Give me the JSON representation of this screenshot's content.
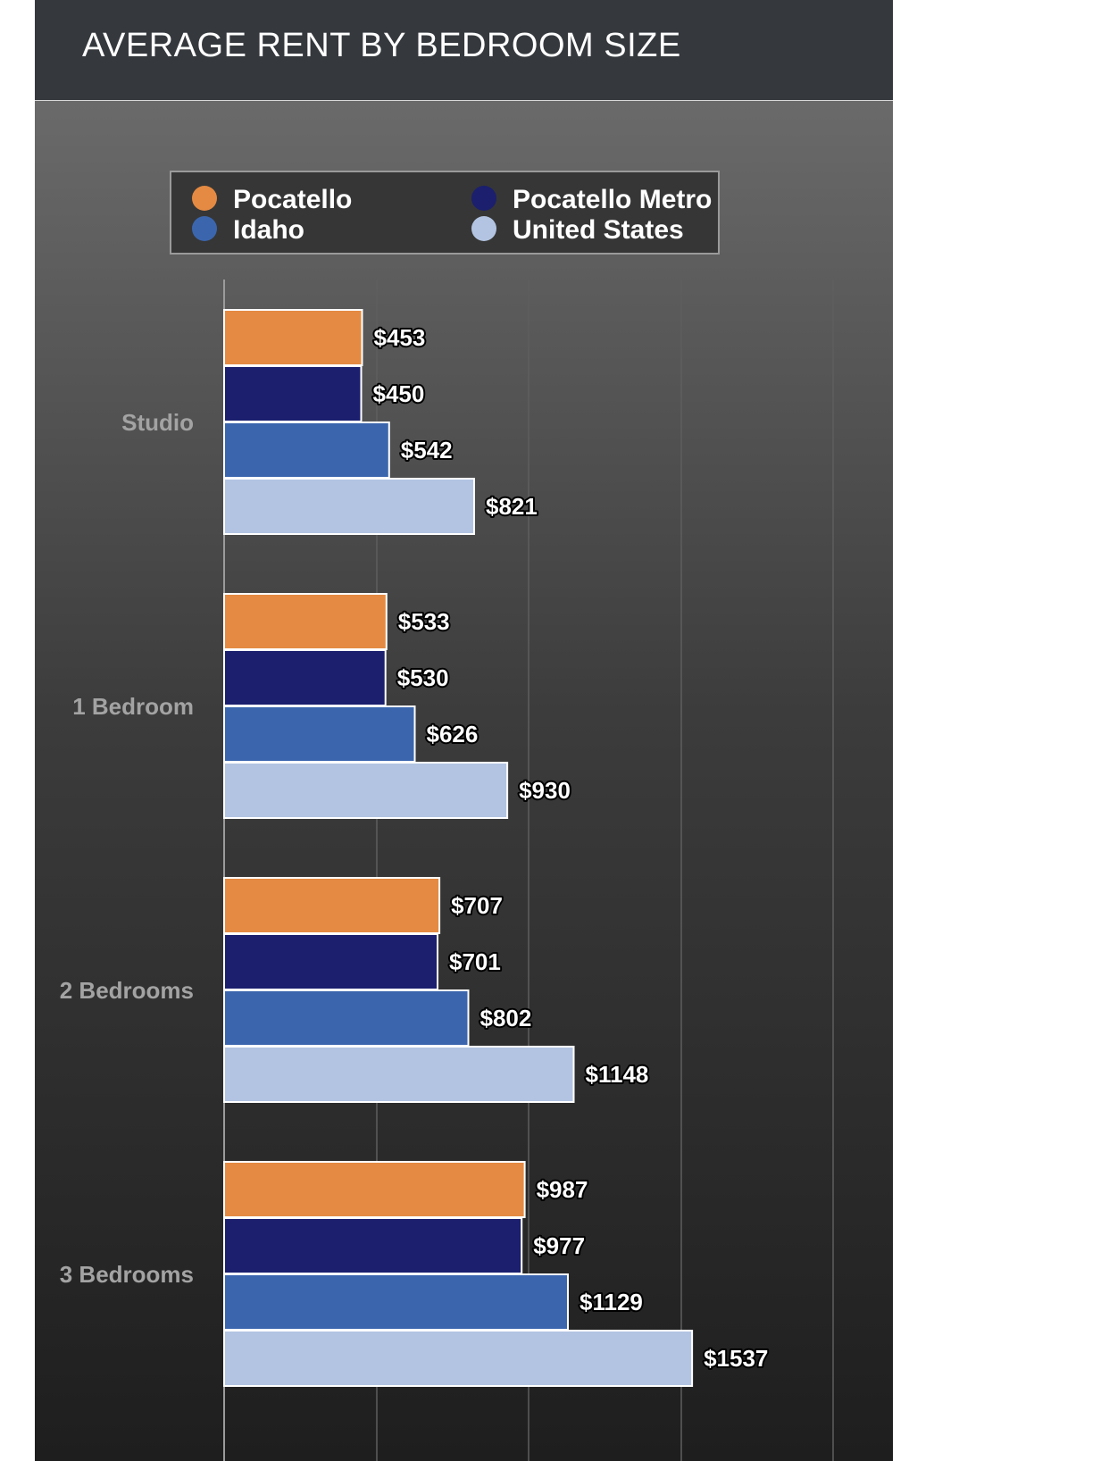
{
  "header": {
    "title": "AVERAGE RENT BY BEDROOM SIZE"
  },
  "colors": {
    "header_bg": "#35393d",
    "pocatello": "#e48a42",
    "pocatello_metro": "#1b1f6e",
    "idaho": "#3b66ae",
    "united_states": "#b3c4e2"
  },
  "chart_data": {
    "type": "bar",
    "orientation": "horizontal",
    "title": "AVERAGE RENT BY BEDROOM SIZE",
    "xlabel": "",
    "ylabel": "",
    "xlim": [
      0,
      2000
    ],
    "grid": true,
    "legend_position": "top",
    "value_prefix": "$",
    "categories": [
      "Studio",
      "1 Bedroom",
      "2 Bedrooms",
      "3 Bedrooms"
    ],
    "series": [
      {
        "name": "Pocatello",
        "color": "#e48a42",
        "values": [
          453,
          533,
          707,
          987
        ]
      },
      {
        "name": "Pocatello Metro",
        "color": "#1b1f6e",
        "values": [
          450,
          530,
          701,
          977
        ]
      },
      {
        "name": "Idaho",
        "color": "#3b66ae",
        "values": [
          542,
          626,
          802,
          1129
        ]
      },
      {
        "name": "United States",
        "color": "#b3c4e2",
        "values": [
          821,
          930,
          1148,
          1537
        ]
      }
    ]
  }
}
